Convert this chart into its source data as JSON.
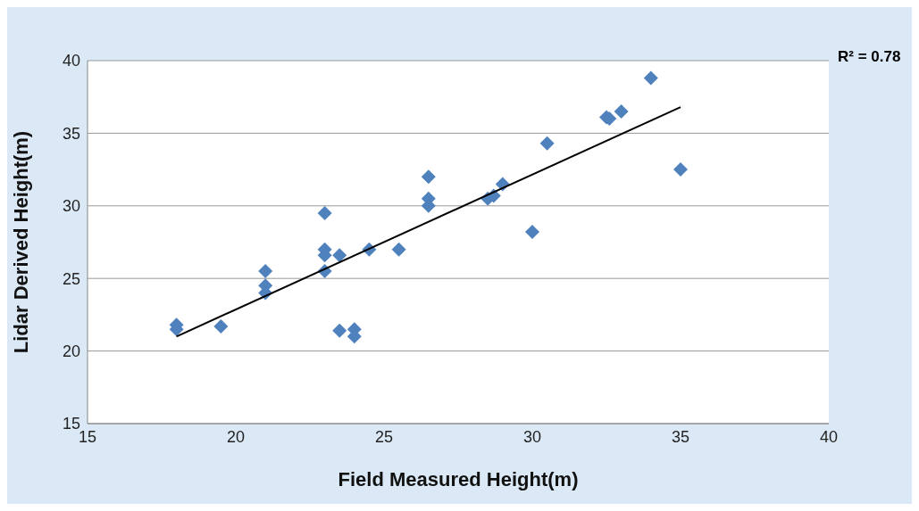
{
  "chart_data": {
    "type": "scatter",
    "xlabel": "Field Measured Height(m)",
    "ylabel": "Lidar Derived Height(m)",
    "xlim": [
      15,
      40
    ],
    "xticks": [
      15,
      20,
      25,
      30,
      35,
      40
    ],
    "ylim": [
      15,
      40
    ],
    "yticks": [
      15,
      20,
      25,
      30,
      35,
      40
    ],
    "grid": "y",
    "marker": "diamond",
    "annotations": [
      {
        "text": "R² = 0.78"
      }
    ],
    "series": [
      {
        "type": "scatter",
        "color": "#4f81bd",
        "x": [
          18,
          18,
          19.5,
          21,
          21,
          21,
          23,
          23,
          23,
          23,
          23.5,
          23.5,
          24,
          24,
          24.5,
          25.5,
          26.5,
          26.5,
          26.5,
          28.5,
          28.7,
          29,
          30,
          30.5,
          32.5,
          32.6,
          33,
          34,
          35
        ],
        "values": [
          21.8,
          21.5,
          21.7,
          25.5,
          24.5,
          24,
          29.5,
          27,
          26.6,
          25.5,
          26.6,
          21.4,
          21.5,
          21,
          27,
          27,
          32,
          30.5,
          30,
          30.5,
          30.7,
          31.5,
          28.2,
          34.3,
          36.1,
          36,
          36.5,
          38.8,
          32.5
        ]
      },
      {
        "type": "line",
        "color": "#000000",
        "marker": "none",
        "x": [
          18,
          35
        ],
        "values": [
          21,
          36.8
        ]
      }
    ]
  }
}
